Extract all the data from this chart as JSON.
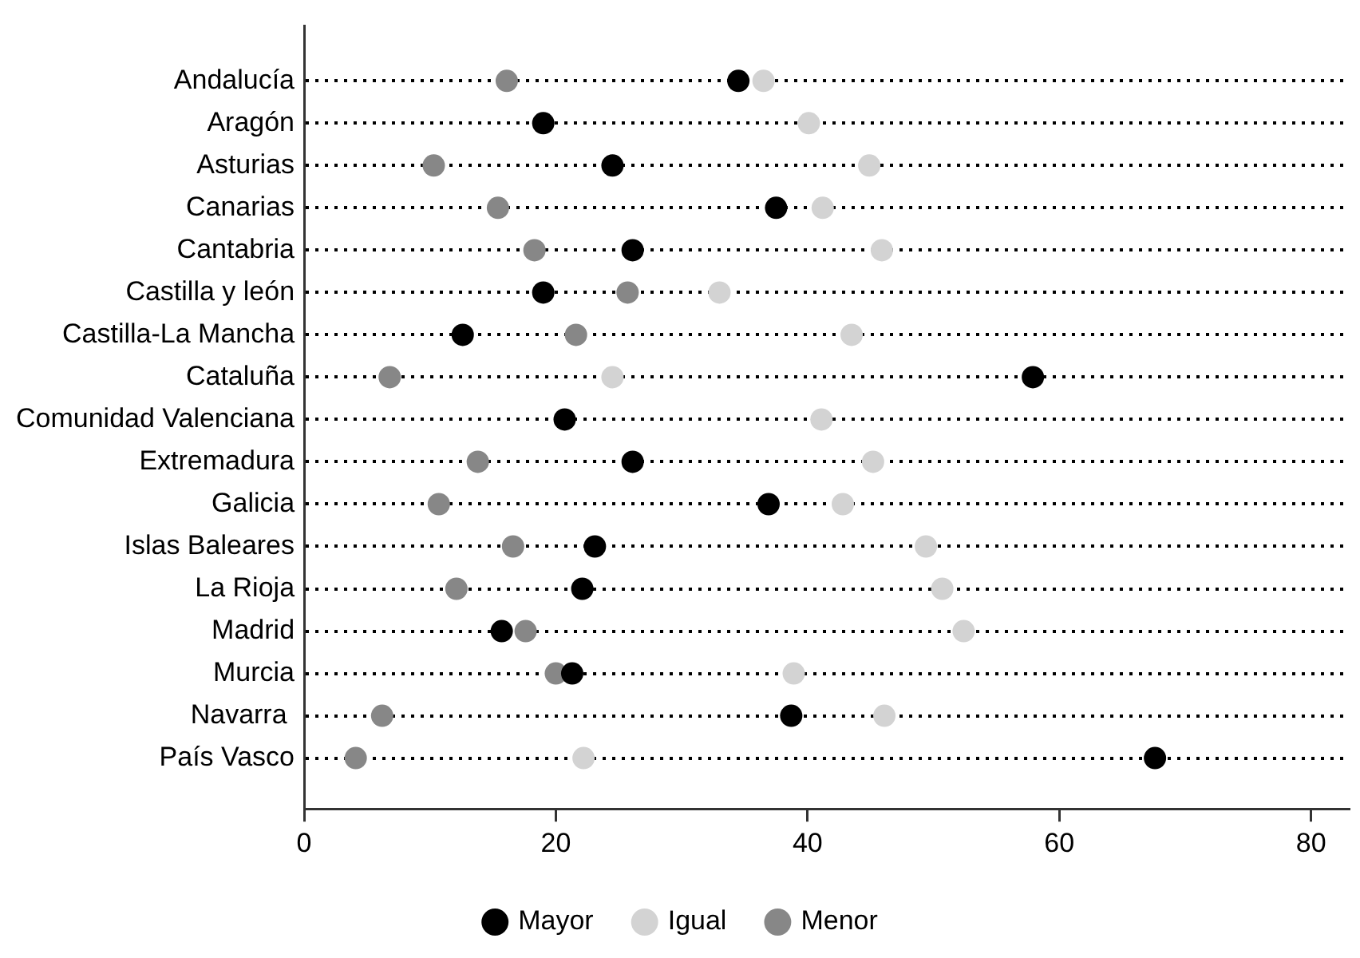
{
  "chart_data": {
    "type": "scatter",
    "categories": [
      "Andalucía",
      "Aragón",
      "Asturias",
      "Canarias",
      "Cantabria",
      "Castilla y león",
      "Castilla-La Mancha",
      "Cataluña",
      "Comunidad Valenciana",
      "Extremadura",
      "Galicia",
      "Islas Baleares",
      "La Rioja",
      "Madrid",
      "Murcia",
      "Navarra ",
      "País Vasco"
    ],
    "orientation": "horizontal",
    "series": [
      {
        "name": "Mayor",
        "color": "#000000",
        "values": [
          34.5,
          19.0,
          24.5,
          37.5,
          26.1,
          19.0,
          12.6,
          57.9,
          20.7,
          26.1,
          36.9,
          23.1,
          22.1,
          15.7,
          21.3,
          38.7,
          67.6
        ]
      },
      {
        "name": "Igual",
        "color": "#d3d3d3",
        "values": [
          36.5,
          40.1,
          44.9,
          41.2,
          45.9,
          33.0,
          43.5,
          24.5,
          41.1,
          45.2,
          42.8,
          49.4,
          50.7,
          52.4,
          38.9,
          46.1,
          22.2
        ]
      },
      {
        "name": "Menor",
        "color": "#878787",
        "values": [
          16.1,
          null,
          10.3,
          15.4,
          18.3,
          25.7,
          21.6,
          6.8,
          null,
          13.8,
          10.7,
          16.6,
          12.1,
          17.6,
          20.0,
          6.2,
          4.1
        ]
      }
    ],
    "xlim": [
      0,
      83
    ],
    "xticks": [
      0,
      20,
      40,
      60,
      80
    ],
    "grid": "y",
    "legend": "bottom",
    "marker": "circle"
  }
}
